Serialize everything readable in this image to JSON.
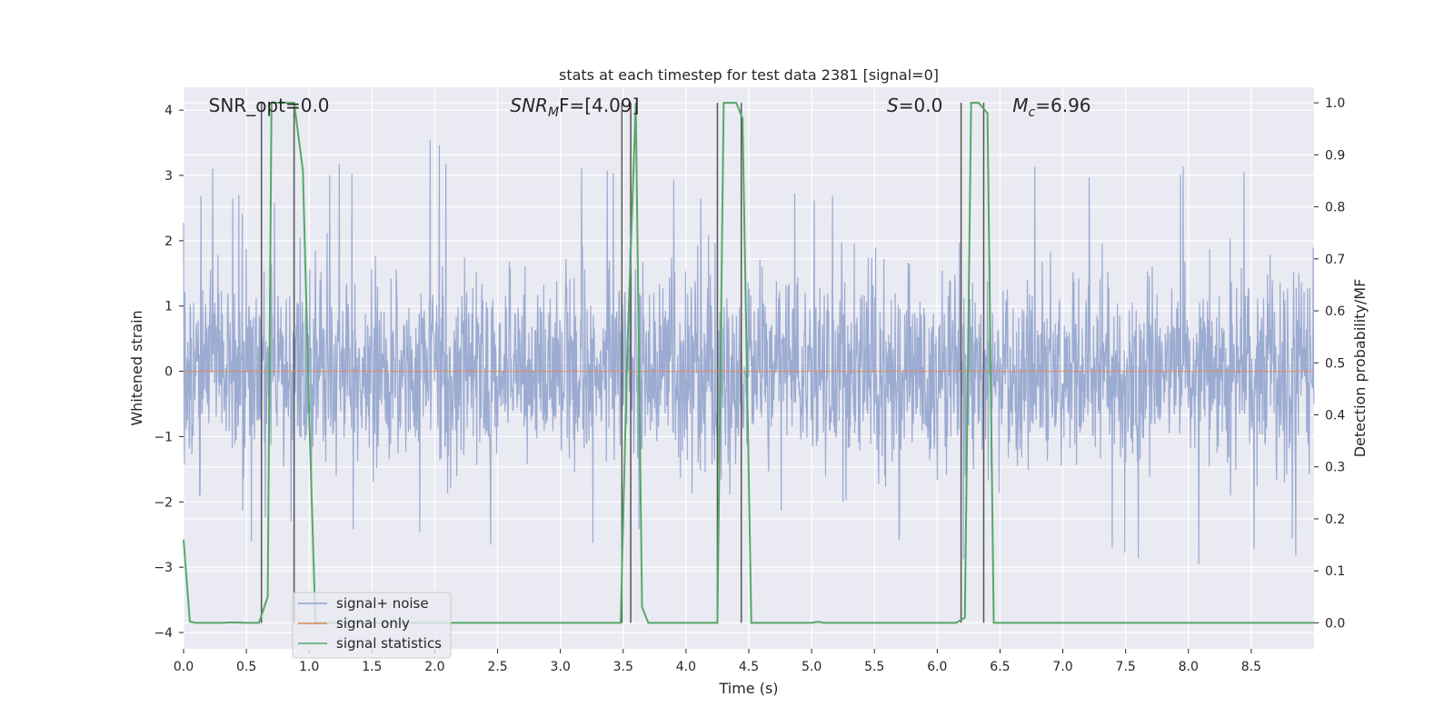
{
  "chart_data": {
    "type": "line",
    "title": "stats at each timestep for test data 2381 [signal=0]",
    "xlabel": "Time (s)",
    "ylabel": "Whitened strain",
    "ylabel_right": "Detection probability/MF",
    "xlim": [
      0.0,
      9.0
    ],
    "ylim": [
      -4.25,
      4.35
    ],
    "ylim_right": [
      -0.05,
      1.03
    ],
    "xticks": [
      0.0,
      0.5,
      1.0,
      1.5,
      2.0,
      2.5,
      3.0,
      3.5,
      4.0,
      4.5,
      5.0,
      5.5,
      6.0,
      6.5,
      7.0,
      7.5,
      8.0,
      8.5
    ],
    "xtick_labels": [
      "0.0",
      "0.5",
      "1.0",
      "1.5",
      "2.0",
      "2.5",
      "3.0",
      "3.5",
      "4.0",
      "4.5",
      "5.0",
      "5.5",
      "6.0",
      "6.5",
      "7.0",
      "7.5",
      "8.0",
      "8.5"
    ],
    "yticks": [
      -4,
      -3,
      -2,
      -1,
      0,
      1,
      2,
      3,
      4
    ],
    "ytick_labels": [
      "−4",
      "−3",
      "−2",
      "−1",
      "0",
      "1",
      "2",
      "3",
      "4"
    ],
    "yticks_right": [
      0.0,
      0.1,
      0.2,
      0.3,
      0.4,
      0.5,
      0.6,
      0.7,
      0.8,
      0.9,
      1.0
    ],
    "ytick_labels_right": [
      "0.0",
      "0.1",
      "0.2",
      "0.3",
      "0.4",
      "0.5",
      "0.6",
      "0.7",
      "0.8",
      "0.9",
      "1.0"
    ],
    "grid": true,
    "legend_position": "lower-left",
    "series": [
      {
        "name": "signal+ noise",
        "color": "#8da0cb",
        "axis": "left",
        "description": "dense noise"
      },
      {
        "name": "signal only",
        "color": "#dd8452",
        "axis": "left",
        "values_constant": 0
      },
      {
        "name": "signal statistics",
        "color": "#55a868",
        "axis": "right",
        "x": [
          0.0,
          0.05,
          0.1,
          0.2,
          0.3,
          0.4,
          0.5,
          0.55,
          0.6,
          0.67,
          0.7,
          0.8,
          0.88,
          0.95,
          1.0,
          1.05,
          3.3,
          3.48,
          3.53,
          3.6,
          3.65,
          3.7,
          4.2,
          4.25,
          4.3,
          4.4,
          4.45,
          4.52,
          4.57,
          4.6,
          5.0,
          5.05,
          5.1,
          6.15,
          6.22,
          6.27,
          6.33,
          6.4,
          6.45,
          6.5,
          6.6,
          9.0
        ],
        "y": [
          0.16,
          0.002,
          0.0,
          0.0,
          0.0,
          0.001,
          0.0,
          0.0,
          0.0,
          0.05,
          1.0,
          1.0,
          1.0,
          0.87,
          0.4,
          0.0,
          0.0,
          0.0,
          0.5,
          1.0,
          0.03,
          0.0,
          0.0,
          0.0,
          1.0,
          1.0,
          0.97,
          0.0,
          0.0,
          0.0,
          0.0,
          0.002,
          0.0,
          0.0,
          0.01,
          1.0,
          1.0,
          0.98,
          0.0,
          0.0,
          0.0,
          0.0
        ]
      }
    ],
    "vertical_lines": [
      0.62,
      0.88,
      3.49,
      3.56,
      4.25,
      4.44,
      6.19,
      6.37
    ],
    "vertical_lines_color": "#555555",
    "noise_envelope": {
      "x": [
        0.0,
        0.25,
        0.5,
        0.75,
        1.0,
        1.25,
        1.5,
        1.75,
        2.0,
        2.25,
        2.5,
        2.75,
        3.0,
        3.25,
        3.5,
        3.75,
        4.0,
        4.25,
        4.5,
        4.75,
        5.0,
        5.25,
        5.5,
        5.75,
        6.0,
        6.25,
        6.5,
        6.75,
        7.0,
        7.25,
        7.5,
        7.75,
        8.0,
        8.25,
        8.5,
        8.75,
        9.0
      ],
      "max": [
        2.5,
        3.4,
        2.6,
        2.8,
        3.0,
        3.2,
        2.9,
        3.0,
        3.7,
        3.4,
        3.2,
        3.0,
        3.1,
        3.2,
        3.0,
        3.4,
        3.0,
        3.2,
        3.1,
        3.0,
        3.0,
        3.2,
        3.3,
        3.1,
        3.5,
        3.1,
        2.9,
        3.3,
        3.1,
        3.3,
        3.6,
        3.4,
        3.2,
        3.3,
        3.3,
        3.95,
        3.0
      ],
      "min": [
        -2.5,
        -2.6,
        -3.0,
        -2.8,
        -3.0,
        -2.7,
        -2.8,
        -2.9,
        -2.7,
        -2.9,
        -2.6,
        -2.9,
        -2.8,
        -2.9,
        -2.6,
        -2.6,
        -3.2,
        -2.8,
        -2.9,
        -2.7,
        -3.3,
        -2.8,
        -2.8,
        -2.7,
        -2.8,
        -2.9,
        -2.9,
        -3.2,
        -2.9,
        -3.0,
        -2.8,
        -3.3,
        -2.9,
        -3.7,
        -3.2,
        -2.9,
        -2.9
      ]
    },
    "annotations": [
      {
        "text": "SNR_opt=0.0",
        "x": 0.2,
        "y": 4.0
      },
      {
        "text_main": "SNR",
        "text_sub": "M",
        "text_rest": "F=[4.09]",
        "italic": true,
        "x": 2.6,
        "y": 4.0
      },
      {
        "text_main": "S",
        "text_rest": "=0.0",
        "italic": true,
        "x": 5.6,
        "y": 4.0
      },
      {
        "text_main": "M",
        "text_sub": "c",
        "text_rest": "=6.96",
        "italic": true,
        "x": 6.6,
        "y": 4.0
      }
    ]
  }
}
